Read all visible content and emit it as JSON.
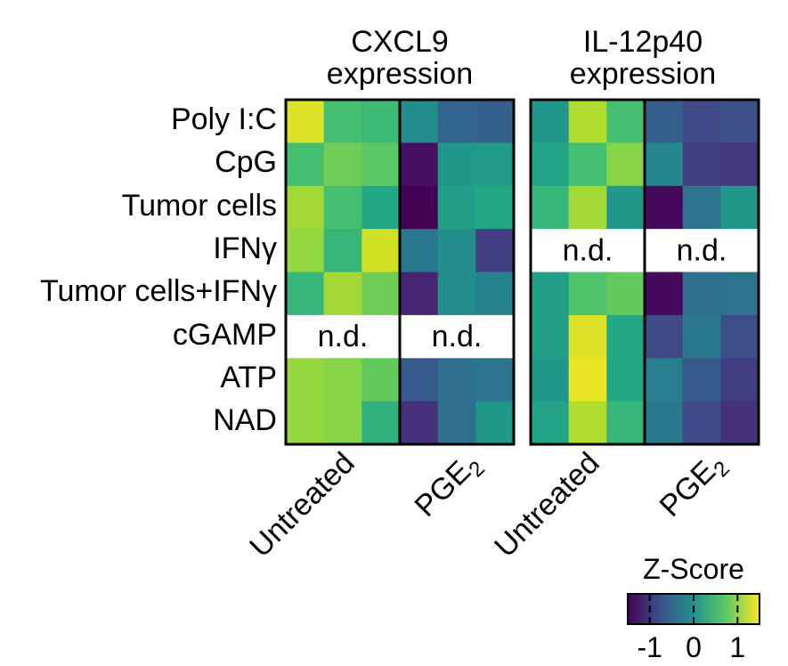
{
  "chart_data": {
    "type": "heatmap",
    "rows": [
      "Poly I:C",
      "CpG",
      "Tumor cells",
      "IFNγ",
      "Tumor cells+IFNγ",
      "cGAMP",
      "ATP",
      "NAD"
    ],
    "colormap": "viridis",
    "panels": [
      {
        "title_lines": [
          "CXCL9",
          "expression"
        ],
        "groups": [
          {
            "label": "Untreated",
            "sub": ""
          },
          {
            "label": "PGE",
            "sub": "2"
          }
        ],
        "not_detected_label": "n.d.",
        "values": [
          [
            0.95,
            0.7,
            0.68,
            0.48,
            0.32,
            0.3
          ],
          [
            0.7,
            0.78,
            0.74,
            0.04,
            0.52,
            0.54
          ],
          [
            0.86,
            0.7,
            0.6,
            0.0,
            0.56,
            0.6
          ],
          [
            0.84,
            0.66,
            0.93,
            0.4,
            0.48,
            0.18
          ],
          [
            0.66,
            0.86,
            0.78,
            0.1,
            0.48,
            0.44
          ],
          [
            null,
            null,
            null,
            null,
            null,
            null
          ],
          [
            0.84,
            0.82,
            0.76,
            0.28,
            0.36,
            0.38
          ],
          [
            0.84,
            0.82,
            0.64,
            0.14,
            0.36,
            0.52
          ]
        ]
      },
      {
        "title_lines": [
          "IL-12p40",
          "expression"
        ],
        "groups": [
          {
            "label": "Untreated",
            "sub": ""
          },
          {
            "label": "PGE",
            "sub": "2"
          }
        ],
        "not_detected_label": "n.d.",
        "values": [
          [
            0.52,
            0.88,
            0.7,
            0.3,
            0.22,
            0.24
          ],
          [
            0.58,
            0.7,
            0.82,
            0.46,
            0.18,
            0.16
          ],
          [
            0.66,
            0.86,
            0.52,
            0.02,
            0.38,
            0.52
          ],
          [
            null,
            null,
            null,
            null,
            null,
            null
          ],
          [
            0.56,
            0.72,
            0.76,
            0.02,
            0.36,
            0.38
          ],
          [
            0.56,
            0.95,
            0.6,
            0.22,
            0.4,
            0.24
          ],
          [
            0.52,
            0.97,
            0.6,
            0.42,
            0.28,
            0.18
          ],
          [
            0.58,
            0.88,
            0.66,
            0.4,
            0.22,
            0.14
          ]
        ]
      }
    ],
    "colorbar": {
      "title": "Z-Score",
      "range": [
        -1.5,
        1.5
      ],
      "ticks": [
        -1,
        0,
        1
      ],
      "tick_labels": [
        "-1",
        "0",
        "1"
      ]
    }
  }
}
